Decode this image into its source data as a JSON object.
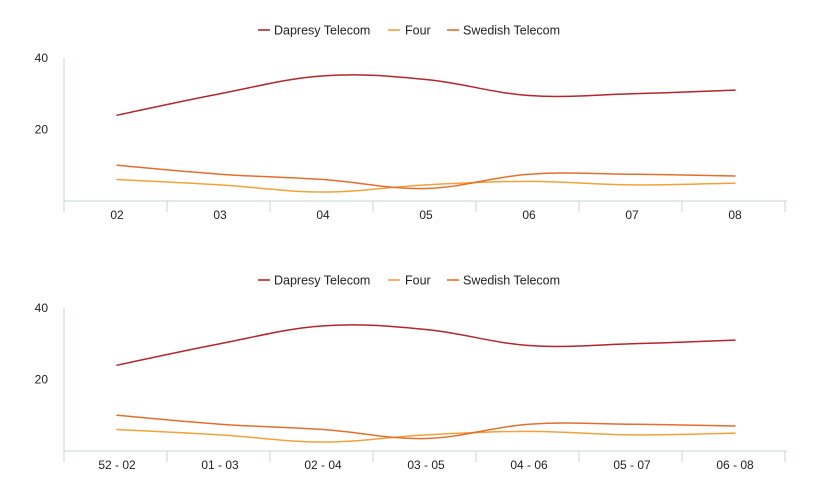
{
  "chart_data": [
    {
      "type": "line",
      "categories": [
        "02",
        "03",
        "04",
        "05",
        "06",
        "07",
        "08"
      ],
      "ylim": [
        0,
        40
      ],
      "yticks": [
        20,
        40
      ],
      "grid": false,
      "legend_position": "top-center",
      "series": [
        {
          "name": "Dapresy Telecom",
          "color": "#b3262e",
          "values": [
            24,
            30,
            35,
            34,
            29.5,
            30,
            31
          ]
        },
        {
          "name": "Four",
          "color": "#f2a23a",
          "values": [
            6,
            4.5,
            2.5,
            4.5,
            5.5,
            4.5,
            5
          ]
        },
        {
          "name": "Swedish Telecom",
          "color": "#e46f2d",
          "values": [
            10,
            7.5,
            6,
            3.5,
            7.5,
            7.5,
            7
          ]
        }
      ]
    },
    {
      "type": "line",
      "categories": [
        "52 - 02",
        "01 - 03",
        "02 - 04",
        "03 - 05",
        "04 - 06",
        "05 - 07",
        "06 - 08"
      ],
      "ylim": [
        0,
        40
      ],
      "yticks": [
        20,
        40
      ],
      "grid": false,
      "legend_position": "top-center",
      "series": [
        {
          "name": "Dapresy Telecom",
          "color": "#b3262e",
          "values": [
            24,
            30,
            35,
            34,
            29.5,
            30,
            31
          ]
        },
        {
          "name": "Four",
          "color": "#f2a23a",
          "values": [
            6,
            4.5,
            2.5,
            4.5,
            5.5,
            4.5,
            5
          ]
        },
        {
          "name": "Swedish Telecom",
          "color": "#e46f2d",
          "values": [
            10,
            7.5,
            6,
            3.5,
            7.5,
            7.5,
            7
          ]
        }
      ]
    }
  ]
}
